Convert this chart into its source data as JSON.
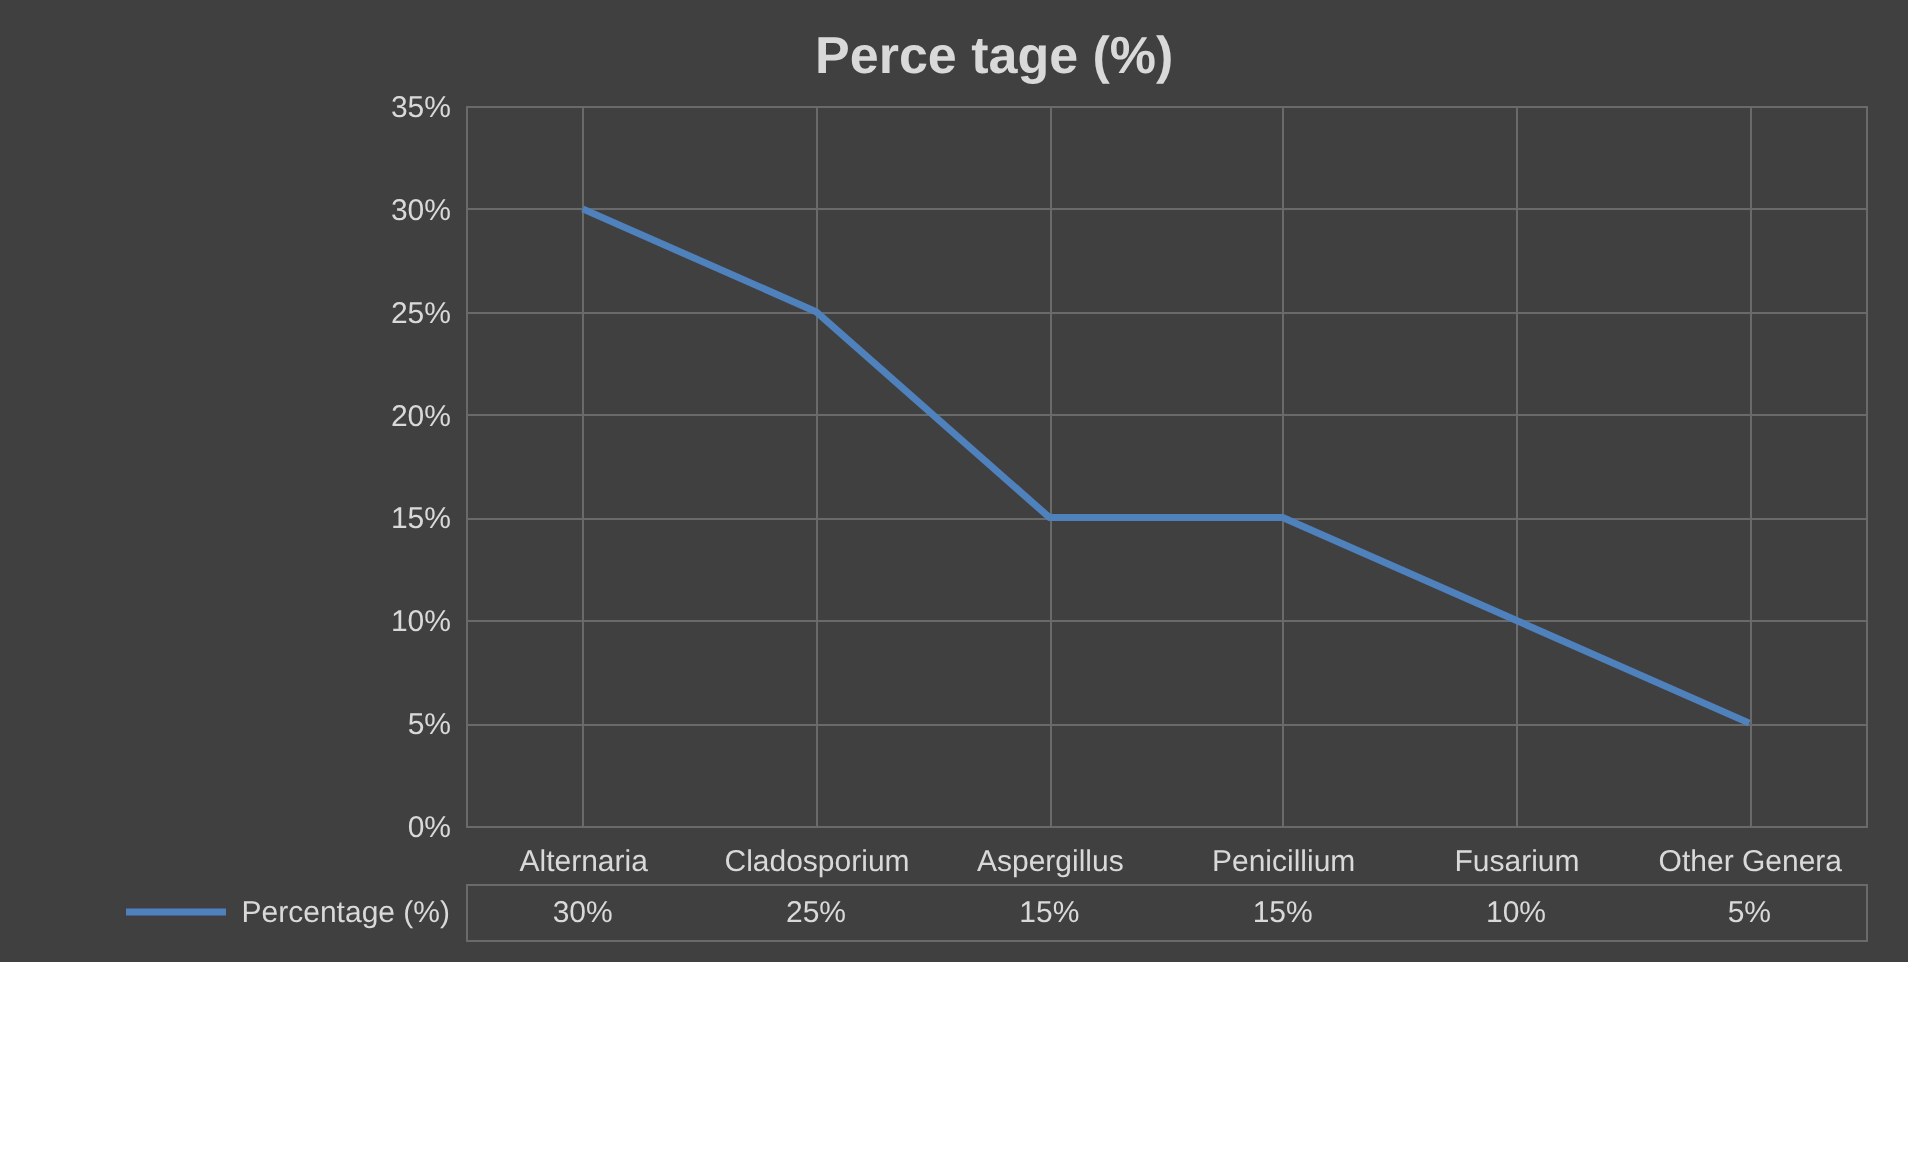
{
  "chart_data": {
    "type": "line",
    "title": "Perce tage (%)",
    "categories": [
      "Alternaria",
      "Cladosporium",
      "Aspergillus",
      "Penicillium",
      "Fusarium",
      "Other Genera"
    ],
    "series": [
      {
        "name": "Percentage (%)",
        "color": "#4f81bd",
        "values": [
          30,
          25,
          15,
          15,
          10,
          5
        ],
        "value_labels": [
          "30%",
          "25%",
          "15%",
          "15%",
          "10%",
          "5%"
        ]
      }
    ],
    "ylim": [
      0,
      35
    ],
    "yticks": [
      {
        "value": 0,
        "label": "0%"
      },
      {
        "value": 5,
        "label": "5%"
      },
      {
        "value": 10,
        "label": "10%"
      },
      {
        "value": 15,
        "label": "15%"
      },
      {
        "value": 20,
        "label": "20%"
      },
      {
        "value": 25,
        "label": "25%"
      },
      {
        "value": 30,
        "label": "30%"
      },
      {
        "value": 35,
        "label": "35%"
      }
    ],
    "grid": true,
    "legend": "bottom",
    "marker": "none",
    "line_style": "solid"
  }
}
